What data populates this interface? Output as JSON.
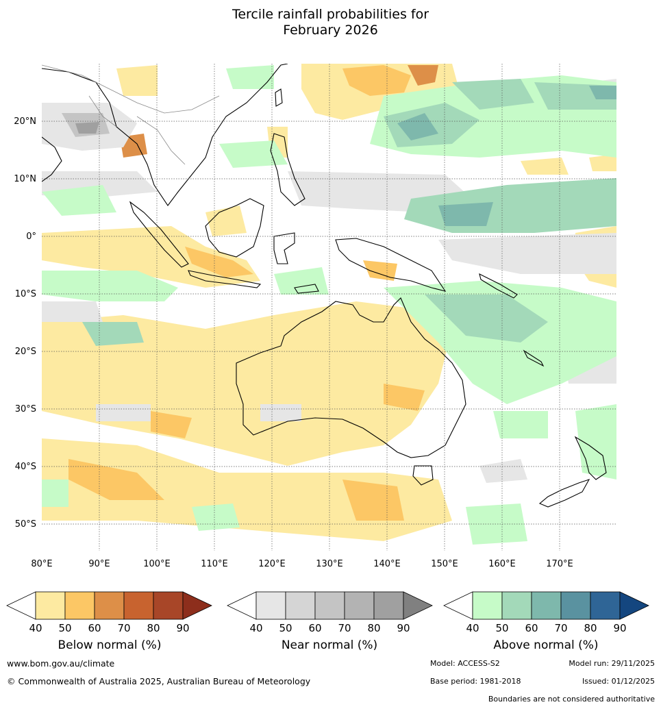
{
  "title_line1": "Tercile rainfall probabilities for",
  "title_line2": "February 2026",
  "map": {
    "lat_labels": [
      "20°N",
      "10°N",
      "0°",
      "10°S",
      "20°S",
      "30°S",
      "40°S",
      "50°S"
    ],
    "lon_labels": [
      "80°E",
      "90°E",
      "100°E",
      "110°E",
      "120°E",
      "130°E",
      "140°E",
      "150°E",
      "160°E",
      "170°E"
    ]
  },
  "colorbars": [
    {
      "label": "Below normal (%)",
      "ticks": [
        "40",
        "50",
        "60",
        "70",
        "80",
        "90"
      ],
      "colors": [
        "#ffffff",
        "#fdeaa1",
        "#fcc765",
        "#dd8f48",
        "#c8632f",
        "#a84628",
        "#8d2e1c"
      ]
    },
    {
      "label": "Near normal (%)",
      "ticks": [
        "40",
        "50",
        "60",
        "70",
        "80",
        "90"
      ],
      "colors": [
        "#ffffff",
        "#e6e6e6",
        "#d5d5d5",
        "#c4c4c4",
        "#b3b3b3",
        "#a0a0a0",
        "#808080"
      ]
    },
    {
      "label": "Above normal (%)",
      "ticks": [
        "40",
        "50",
        "60",
        "70",
        "80",
        "90"
      ],
      "colors": [
        "#ffffff",
        "#c6fbc8",
        "#a3d9b9",
        "#7eb8ac",
        "#5a92a0",
        "#2f6596",
        "#14467f"
      ]
    }
  ],
  "footer": {
    "website": "www.bom.gov.au/climate",
    "copyright": "© Commonwealth of Australia 2025, Australian Bureau of Meteorology",
    "model": "Model: ACCESS-S2",
    "model_run": "Model run: 29/11/2025",
    "base_period": "Base period: 1981-2018",
    "issued": "Issued: 01/12/2025",
    "disclaimer": "Boundaries are not considered authoritative"
  }
}
